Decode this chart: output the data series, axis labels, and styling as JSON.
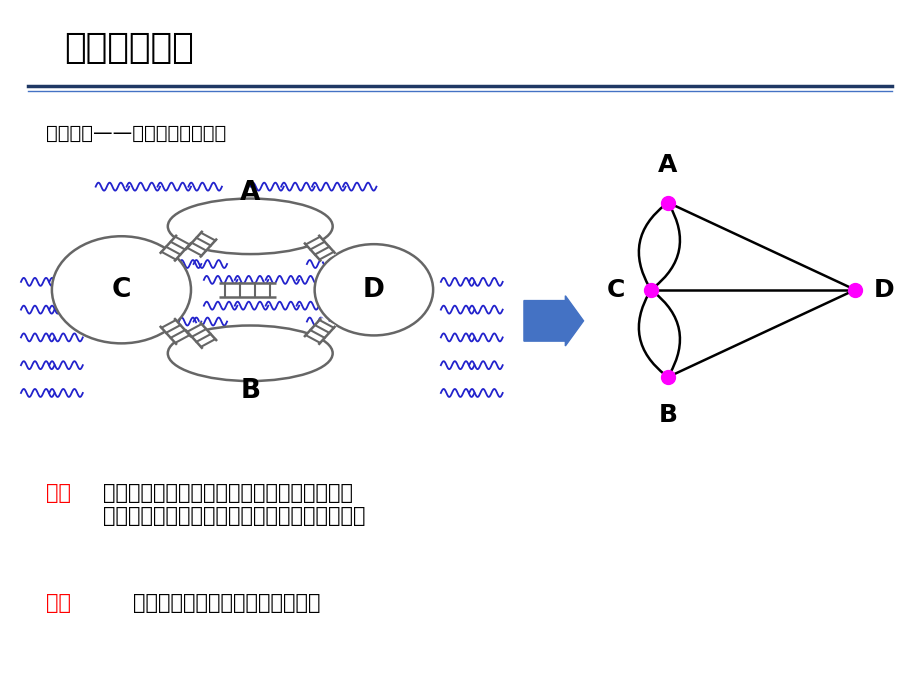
{
  "title": "图的基本概念",
  "subtitle": "图论起源——哥尼斯堡七桥问题",
  "problem_label": "问题",
  "problem_text": "：一个散步者能否从任一块陆地出发，走过七\n座桥，且每座桥只走过一次，最后回到出发点？",
  "conclusion_label": "结论",
  "conclusion_text": "：每个结点关联的边数均为偶数。",
  "title_color": "#000000",
  "subtitle_color": "#000000",
  "problem_label_color": "#FF0000",
  "conclusion_label_color": "#FF0000",
  "text_color": "#000000",
  "node_color": "#FF00FF",
  "edge_color": "#000000",
  "water_color": "#2222CC",
  "land_border_color": "#666666",
  "arrow_color": "#4472C4",
  "title_line_color1": "#1F3864",
  "title_line_color2": "#4472C4",
  "bg_color": "#FFFFFF",
  "nA": [
    3.0,
    6.2
  ],
  "nB": [
    3.0,
    1.8
  ],
  "nC": [
    2.5,
    4.0
  ],
  "nD": [
    8.5,
    4.0
  ]
}
